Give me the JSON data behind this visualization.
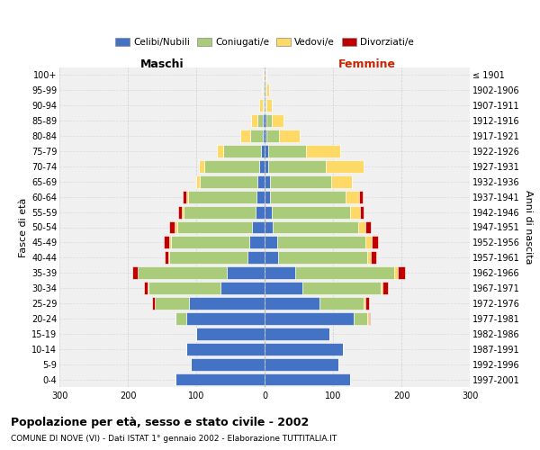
{
  "age_groups": [
    "0-4",
    "5-9",
    "10-14",
    "15-19",
    "20-24",
    "25-29",
    "30-34",
    "35-39",
    "40-44",
    "45-49",
    "50-54",
    "55-59",
    "60-64",
    "65-69",
    "70-74",
    "75-79",
    "80-84",
    "85-89",
    "90-94",
    "95-99",
    "100+"
  ],
  "birth_years": [
    "1997-2001",
    "1992-1996",
    "1987-1991",
    "1982-1986",
    "1977-1981",
    "1972-1976",
    "1967-1971",
    "1962-1966",
    "1957-1961",
    "1952-1956",
    "1947-1951",
    "1942-1946",
    "1937-1941",
    "1932-1936",
    "1927-1931",
    "1922-1926",
    "1917-1921",
    "1912-1916",
    "1907-1911",
    "1902-1906",
    "≤ 1901"
  ],
  "maschi": {
    "celibi": [
      130,
      108,
      115,
      100,
      115,
      110,
      65,
      55,
      25,
      22,
      18,
      13,
      12,
      10,
      8,
      5,
      3,
      2,
      1,
      1,
      1
    ],
    "coniugati": [
      0,
      0,
      0,
      0,
      15,
      50,
      105,
      130,
      115,
      115,
      110,
      105,
      100,
      85,
      80,
      55,
      18,
      8,
      2,
      1,
      0
    ],
    "vedovi": [
      0,
      0,
      0,
      0,
      0,
      0,
      1,
      1,
      1,
      2,
      3,
      3,
      3,
      5,
      8,
      10,
      15,
      10,
      5,
      2,
      1
    ],
    "divorziati": [
      0,
      0,
      0,
      0,
      0,
      5,
      5,
      8,
      5,
      8,
      8,
      5,
      5,
      0,
      0,
      0,
      0,
      0,
      0,
      0,
      0
    ]
  },
  "femmine": {
    "nubili": [
      125,
      108,
      115,
      95,
      130,
      80,
      55,
      45,
      20,
      18,
      12,
      10,
      8,
      8,
      5,
      5,
      3,
      2,
      1,
      1,
      1
    ],
    "coniugate": [
      0,
      0,
      0,
      0,
      20,
      65,
      115,
      145,
      130,
      130,
      125,
      115,
      110,
      90,
      85,
      55,
      18,
      8,
      2,
      1,
      0
    ],
    "vedove": [
      0,
      0,
      0,
      0,
      2,
      2,
      2,
      5,
      5,
      8,
      10,
      15,
      20,
      30,
      55,
      50,
      30,
      18,
      8,
      4,
      2
    ],
    "divorziate": [
      0,
      0,
      0,
      0,
      2,
      5,
      8,
      10,
      8,
      10,
      8,
      5,
      5,
      0,
      0,
      0,
      0,
      0,
      0,
      0,
      0
    ]
  },
  "colors": {
    "celibi": "#4472C4",
    "coniugati": "#AACB7A",
    "vedovi": "#FFD966",
    "divorziati": "#C00000"
  },
  "legend_labels": [
    "Celibi/Nubili",
    "Coniugati/e",
    "Vedovi/e",
    "Divorziati/e"
  ],
  "title": "Popolazione per età, sesso e stato civile - 2002",
  "subtitle": "COMUNE DI NOVE (VI) - Dati ISTAT 1° gennaio 2002 - Elaborazione TUTTITALIA.IT",
  "xlabel_left": "Maschi",
  "xlabel_right": "Femmine",
  "ylabel_left": "Fasce di età",
  "ylabel_right": "Anni di nascita",
  "xlim": 300,
  "bg_color": "#ffffff",
  "plot_bg_color": "#f0f0f0",
  "grid_color": "#cccccc"
}
